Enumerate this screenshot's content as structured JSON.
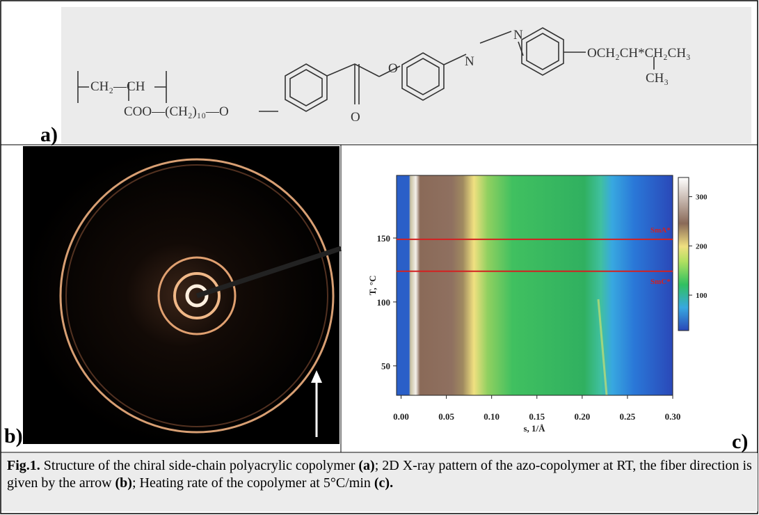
{
  "panel_a": {
    "label": "a)",
    "formula": {
      "backbone": "CH₂—CH",
      "ester": "COO—(CH₂)₁₀—O",
      "carbonyl_o": "O",
      "ester_o": "O",
      "azo_n1": "N",
      "azo_n2": "N",
      "tail": "OCH₂CH*CH₂CH₃",
      "methyl": "CH₃"
    }
  },
  "panel_b": {
    "label": "b)"
  },
  "panel_c": {
    "label": "c)",
    "ylabel": "T, °C",
    "xlabel": "s, 1/Å",
    "xlim": [
      -0.005,
      0.3
    ],
    "ylim": [
      27,
      199
    ],
    "xticks": [
      {
        "value": 0,
        "label": "0.00"
      },
      {
        "value": 0.05,
        "label": "0.05"
      },
      {
        "value": 0.1,
        "label": "0.10"
      },
      {
        "value": 0.15,
        "label": "0.15"
      },
      {
        "value": 0.2,
        "label": "0.20"
      },
      {
        "value": 0.25,
        "label": "0.25"
      },
      {
        "value": 0.3,
        "label": "0.30"
      }
    ],
    "yticks": [
      50,
      100,
      150
    ],
    "colorbar": {
      "lim": [
        28,
        339
      ],
      "ticks": [
        100,
        200,
        300
      ]
    },
    "transitions": [
      {
        "label": "SmA*",
        "value": 149
      },
      {
        "label": "SmC*",
        "value": 124
      }
    ],
    "line_color": "#d42020"
  },
  "caption": [
    "Fig.1.",
    " Structure of the chiral side-chain polyacrylic copolymer ",
    "(a)",
    "; 2D X-ray pattern of the azo-copolymer at RT, the fiber direction is given by the arrow ",
    "(b)",
    "; Heating rate of the copolymer at 5°C/min ",
    "(c)",
    "."
  ]
}
